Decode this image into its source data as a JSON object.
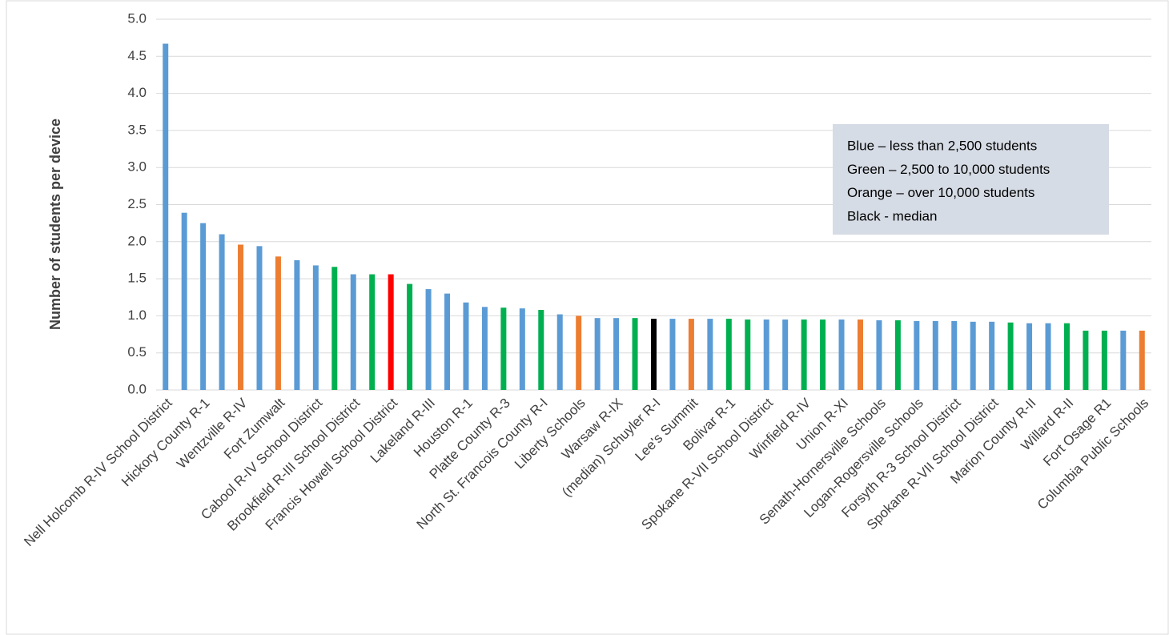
{
  "chart_data": {
    "type": "bar",
    "y_label": "Number of students per device",
    "legend_lines": [
      "Blue – less than 2,500 students",
      "Green – 2,500 to 10,000 students",
      "Orange – over 10,000 students",
      "Black - median"
    ],
    "categories": [
      "Nell Holcomb R-IV School District",
      null,
      "Hickory County R-1",
      null,
      "Wentzville R-IV",
      null,
      "Fort Zumwalt",
      null,
      "Cabool R-IV School District",
      null,
      "Brookfield R-III School District",
      null,
      "Francis Howell School District",
      null,
      "Lakeland R-III",
      null,
      "Houston R-1",
      null,
      "Platte County R-3",
      null,
      "North St. Francois County R-I",
      null,
      "Liberty Schools",
      null,
      "Warsaw R-IX",
      null,
      "(median) Schuyler R-I",
      null,
      "Lee's Summit",
      null,
      "Bolivar R-1",
      null,
      "Spokane R-VII School District",
      null,
      "Winfield R-IV",
      null,
      "Union R-XI",
      null,
      "Senath-Hornersville Schools",
      null,
      "Logan-Rogersville Schools",
      null,
      "Forsyth R-3 School District",
      null,
      "Spokane R-VII School District",
      null,
      "Marion County R-II",
      null,
      "Willard R-II",
      null,
      "Fort Osage R1",
      null,
      "Columbia Public Schools"
    ],
    "values": [
      4.67,
      2.39,
      2.25,
      2.1,
      1.96,
      1.94,
      1.8,
      1.75,
      1.68,
      1.66,
      1.56,
      1.56,
      1.56,
      1.43,
      1.36,
      1.3,
      1.18,
      1.12,
      1.11,
      1.1,
      1.08,
      1.02,
      1.0,
      0.97,
      0.97,
      0.97,
      0.96,
      0.96,
      0.96,
      0.96,
      0.96,
      0.95,
      0.95,
      0.95,
      0.95,
      0.95,
      0.95,
      0.95,
      0.94,
      0.94,
      0.93,
      0.93,
      0.93,
      0.92,
      0.92,
      0.91,
      0.9,
      0.9,
      0.9,
      0.8,
      0.8,
      0.8,
      0.8
    ],
    "colors": [
      "#5b9bd5",
      "#5b9bd5",
      "#5b9bd5",
      "#5b9bd5",
      "#ed7d31",
      "#5b9bd5",
      "#ed7d31",
      "#5b9bd5",
      "#5b9bd5",
      "#00b050",
      "#5b9bd5",
      "#00b050",
      "#ff0000",
      "#00b050",
      "#5b9bd5",
      "#5b9bd5",
      "#5b9bd5",
      "#5b9bd5",
      "#00b050",
      "#5b9bd5",
      "#00b050",
      "#5b9bd5",
      "#ed7d31",
      "#5b9bd5",
      "#5b9bd5",
      "#00b050",
      "#000000",
      "#5b9bd5",
      "#ed7d31",
      "#5b9bd5",
      "#00b050",
      "#00b050",
      "#5b9bd5",
      "#5b9bd5",
      "#00b050",
      "#00b050",
      "#5b9bd5",
      "#ed7d31",
      "#5b9bd5",
      "#00b050",
      "#5b9bd5",
      "#5b9bd5",
      "#5b9bd5",
      "#5b9bd5",
      "#5b9bd5",
      "#00b050",
      "#5b9bd5",
      "#5b9bd5",
      "#00b050",
      "#00b050",
      "#00b050",
      "#5b9bd5",
      "#ed7d31"
    ],
    "ylim": [
      0,
      5
    ],
    "yticks": [
      {
        "value": 0,
        "label": "0.0"
      },
      {
        "value": 0.5,
        "label": "0.5"
      },
      {
        "value": 1,
        "label": "1.0"
      },
      {
        "value": 1.5,
        "label": "1.5"
      },
      {
        "value": 2,
        "label": "2.0"
      },
      {
        "value": 2.5,
        "label": "2.5"
      },
      {
        "value": 3,
        "label": "3.0"
      },
      {
        "value": 3.5,
        "label": "3.5"
      },
      {
        "value": 4,
        "label": "4.0"
      },
      {
        "value": 4.5,
        "label": "4.5"
      },
      {
        "value": 5,
        "label": "5.0"
      }
    ],
    "grid": true
  }
}
